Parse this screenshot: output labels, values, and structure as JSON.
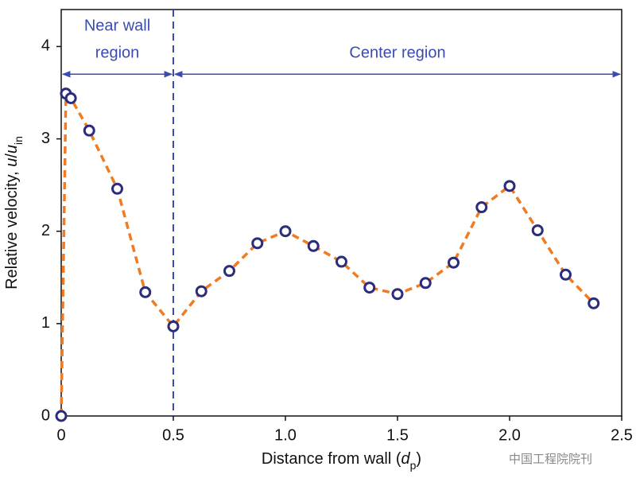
{
  "chart_data": {
    "type": "line",
    "x_label_parts": [
      "Distance from wall (",
      "d",
      "p",
      ")"
    ],
    "y_label_parts": [
      "Relative velocity, ",
      "u",
      "/",
      "u",
      "in"
    ],
    "x": [
      0,
      0.021,
      0.043,
      0.125,
      0.25,
      0.375,
      0.5,
      0.625,
      0.75,
      0.875,
      1.0,
      1.125,
      1.25,
      1.375,
      1.5,
      1.625,
      1.75,
      1.875,
      2.0,
      2.125,
      2.25,
      2.375
    ],
    "series": [
      {
        "color": "#f07b22",
        "marker_color": "#2b2d7c",
        "values": [
          0,
          3.49,
          3.44,
          3.09,
          2.46,
          1.34,
          0.97,
          1.35,
          1.57,
          1.87,
          2.0,
          1.84,
          1.67,
          1.39,
          1.32,
          1.44,
          1.66,
          2.26,
          2.49,
          2.01,
          1.53,
          1.22
        ]
      }
    ],
    "xlim": [
      0,
      2.5
    ],
    "ylim": [
      0,
      4.4
    ],
    "xticks": [
      0,
      0.5,
      {
        "value": 1,
        "label": "1.0"
      },
      1.5,
      {
        "value": 2,
        "label": "2.0"
      },
      2.5
    ],
    "yticks": [
      0,
      1,
      2,
      3,
      4
    ],
    "divider_x": 0.5,
    "region_arrow_y": 3.7,
    "annotation_color": "#3a4cb0",
    "regions": [
      {
        "from": 0,
        "to": 0.5,
        "lines": [
          "Near wall",
          "region"
        ]
      },
      {
        "from": 0.5,
        "to": 2.5,
        "lines": [
          "Center region"
        ]
      }
    ]
  },
  "watermark": "中国工程院院刊"
}
